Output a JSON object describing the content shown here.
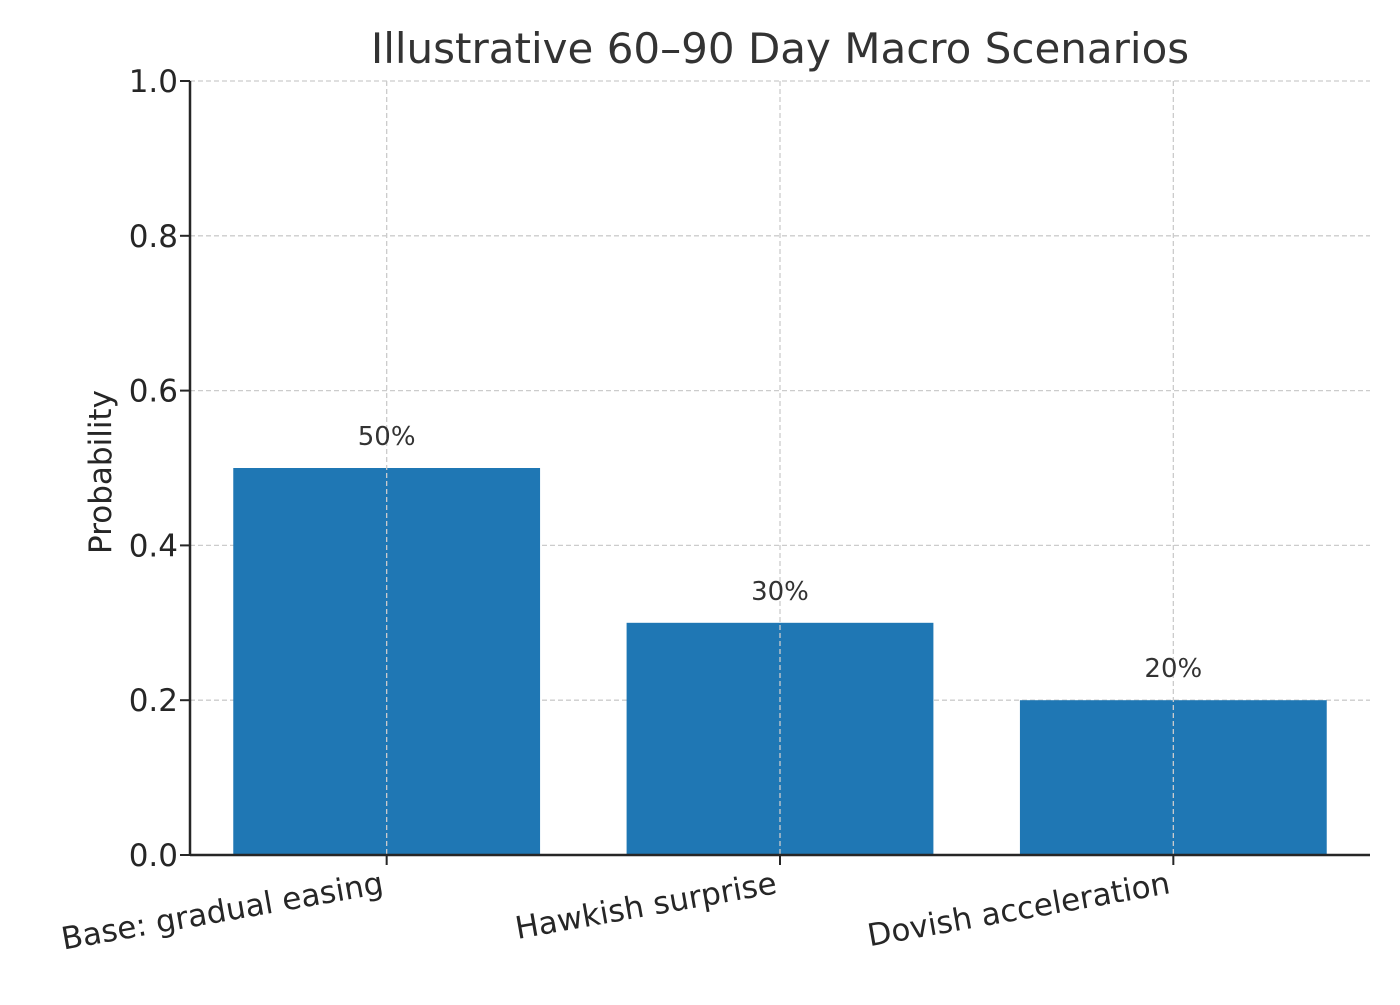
{
  "chart_data": {
    "type": "bar",
    "title": "Illustrative 60–90 Day Macro Scenarios",
    "xlabel": "",
    "ylabel": "Probability",
    "categories": [
      "Base: gradual easing",
      "Hawkish surprise",
      "Dovish acceleration"
    ],
    "values": [
      0.5,
      0.3,
      0.2
    ],
    "data_labels": [
      "50%",
      "30%",
      "20%"
    ],
    "ylim": [
      0.0,
      1.0
    ],
    "yticks": [
      "0.0",
      "0.2",
      "0.4",
      "0.6",
      "0.8",
      "1.0"
    ],
    "grid": true,
    "legend": "none",
    "colors": {
      "bar": "#1f77b4",
      "grid": "#cccccc",
      "axis": "#262626",
      "text": "#333333"
    }
  }
}
